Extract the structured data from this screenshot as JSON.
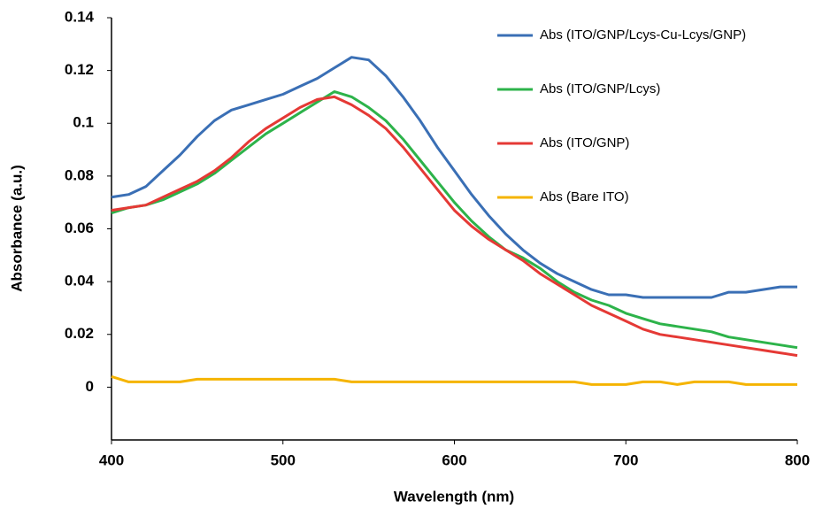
{
  "chart_data": {
    "type": "line",
    "x_label": "Wavelength (nm)",
    "y_label": "Absorbance (a.u.)",
    "x": [
      400,
      410,
      420,
      430,
      440,
      450,
      460,
      470,
      480,
      490,
      500,
      510,
      520,
      530,
      540,
      550,
      560,
      570,
      580,
      590,
      600,
      610,
      620,
      630,
      640,
      650,
      660,
      670,
      680,
      690,
      700,
      710,
      720,
      730,
      740,
      750,
      760,
      770,
      780,
      790,
      800
    ],
    "series": [
      {
        "name": "Abs (ITO/GNP/Lcys-Cu-Lcys/GNP)",
        "color": "#3a6fb5",
        "values": [
          0.072,
          0.073,
          0.076,
          0.082,
          0.088,
          0.095,
          0.101,
          0.105,
          0.107,
          0.109,
          0.111,
          0.114,
          0.117,
          0.121,
          0.125,
          0.124,
          0.118,
          0.11,
          0.101,
          0.091,
          0.082,
          0.073,
          0.065,
          0.058,
          0.052,
          0.047,
          0.043,
          0.04,
          0.037,
          0.035,
          0.035,
          0.034,
          0.034,
          0.034,
          0.034,
          0.034,
          0.036,
          0.036,
          0.037,
          0.038,
          0.038
        ]
      },
      {
        "name": "Abs (ITO/GNP/Lcys)",
        "color": "#2db34a",
        "values": [
          0.066,
          0.068,
          0.069,
          0.071,
          0.074,
          0.077,
          0.081,
          0.086,
          0.091,
          0.096,
          0.1,
          0.104,
          0.108,
          0.112,
          0.11,
          0.106,
          0.101,
          0.094,
          0.086,
          0.078,
          0.07,
          0.063,
          0.057,
          0.052,
          0.049,
          0.045,
          0.04,
          0.036,
          0.033,
          0.031,
          0.028,
          0.026,
          0.024,
          0.023,
          0.022,
          0.021,
          0.019,
          0.018,
          0.017,
          0.016,
          0.015
        ]
      },
      {
        "name": "Abs (ITO/GNP)",
        "color": "#e53935",
        "values": [
          0.067,
          0.068,
          0.069,
          0.072,
          0.075,
          0.078,
          0.082,
          0.087,
          0.093,
          0.098,
          0.102,
          0.106,
          0.109,
          0.11,
          0.107,
          0.103,
          0.098,
          0.091,
          0.083,
          0.075,
          0.067,
          0.061,
          0.056,
          0.052,
          0.048,
          0.043,
          0.039,
          0.035,
          0.031,
          0.028,
          0.025,
          0.022,
          0.02,
          0.019,
          0.018,
          0.017,
          0.016,
          0.015,
          0.014,
          0.013,
          0.012
        ]
      },
      {
        "name": "Abs (Bare ITO)",
        "color": "#f5b400",
        "values": [
          0.004,
          0.002,
          0.002,
          0.002,
          0.002,
          0.003,
          0.003,
          0.003,
          0.003,
          0.003,
          0.003,
          0.003,
          0.003,
          0.003,
          0.002,
          0.002,
          0.002,
          0.002,
          0.002,
          0.002,
          0.002,
          0.002,
          0.002,
          0.002,
          0.002,
          0.002,
          0.002,
          0.002,
          0.001,
          0.001,
          0.001,
          0.002,
          0.002,
          0.001,
          0.002,
          0.002,
          0.002,
          0.001,
          0.001,
          0.001,
          0.001
        ]
      }
    ],
    "xlim": [
      400,
      800
    ],
    "ylim": [
      -0.02,
      0.14
    ],
    "xticks": [
      400,
      500,
      600,
      700,
      800
    ],
    "yticks": [
      0,
      0.02,
      0.04,
      0.06,
      0.08,
      0.1,
      0.12,
      0.14
    ],
    "grid": false,
    "legend": "upper right"
  }
}
